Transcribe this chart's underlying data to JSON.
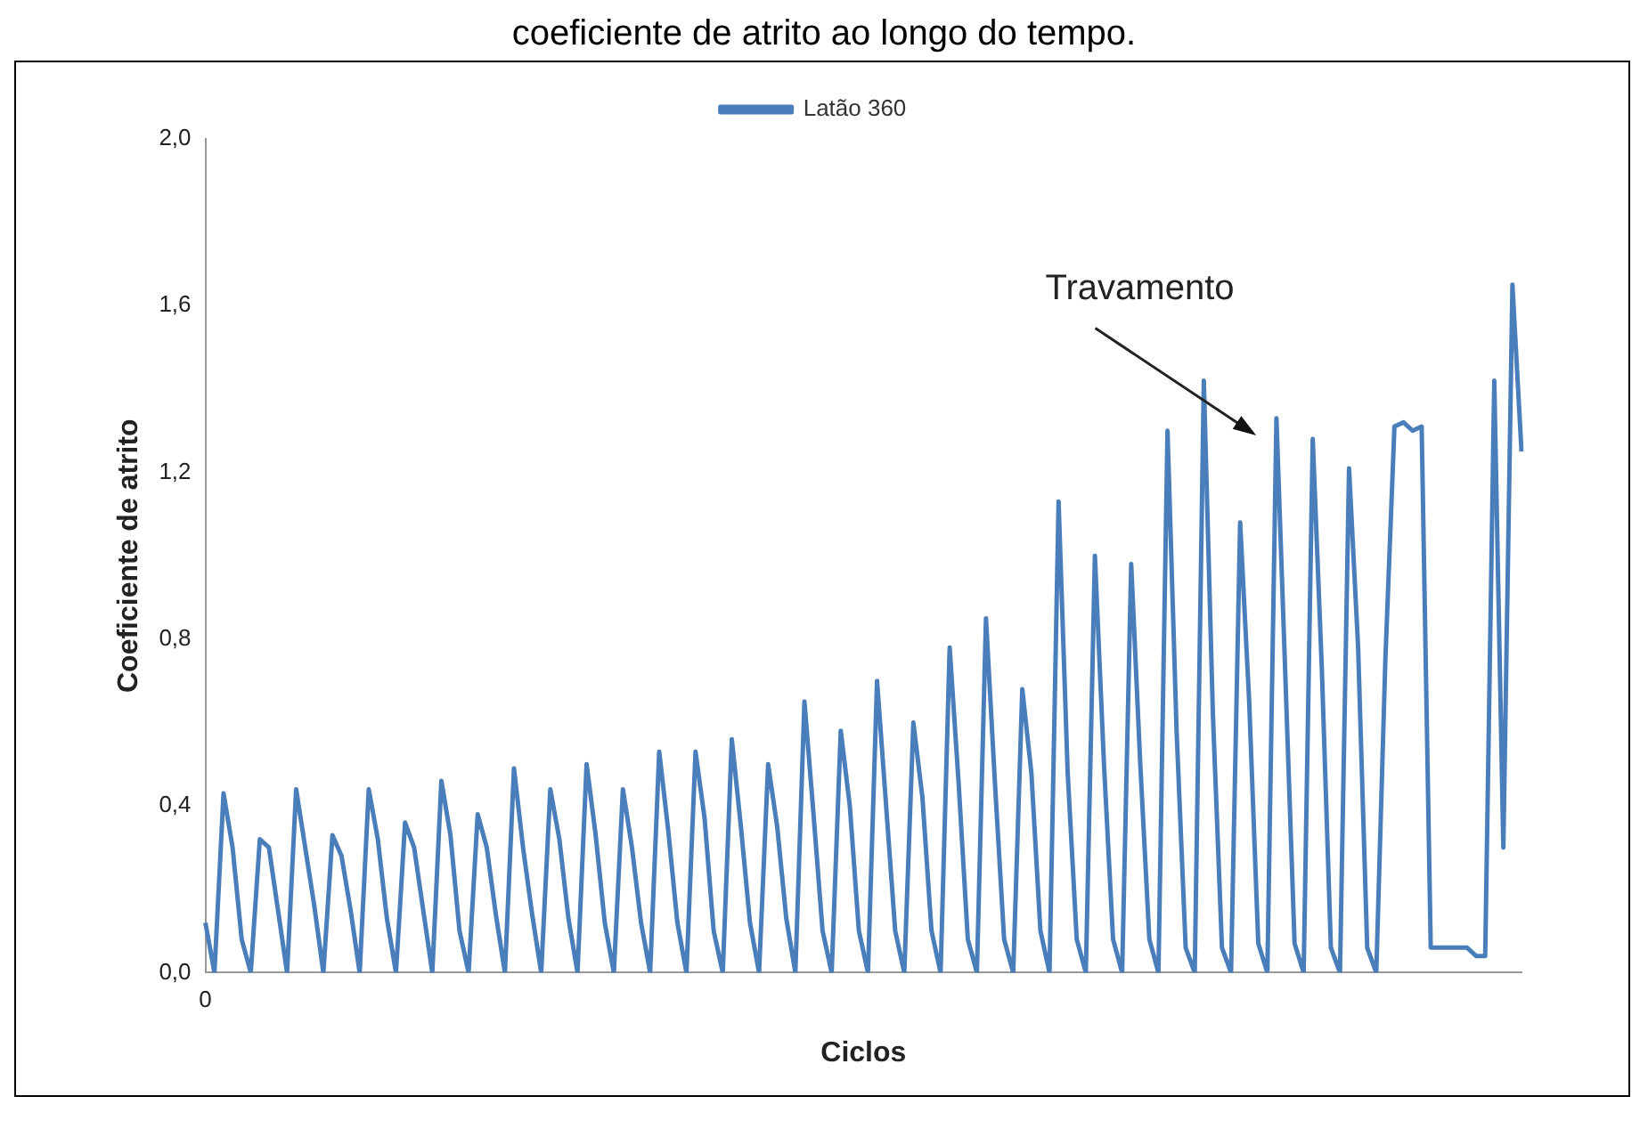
{
  "chart_data": {
    "type": "line",
    "title": "coeficiente de atrito ao longo do tempo.",
    "xlabel": "Ciclos",
    "ylabel": "Coeficiente de atrito",
    "annotations": [
      "Travamento"
    ],
    "categories": [
      "0",
      null,
      null,
      null,
      null,
      null,
      null,
      null,
      null,
      null,
      null,
      null,
      null,
      null,
      null,
      null,
      null,
      null,
      null,
      null,
      null,
      null,
      null,
      null,
      null,
      null,
      null,
      null,
      null,
      null,
      null,
      null,
      null,
      null,
      null,
      null,
      null,
      null,
      null,
      null,
      null,
      null,
      null,
      null,
      null,
      null,
      null,
      null,
      null,
      null,
      null,
      null,
      null,
      null,
      null,
      null,
      null,
      null,
      null,
      null,
      null,
      null,
      null,
      null,
      null,
      null,
      null,
      null,
      null,
      null,
      null,
      null,
      null,
      null,
      null,
      null,
      null,
      null,
      null,
      null,
      null,
      null,
      null,
      null,
      null,
      null,
      null,
      null,
      null,
      null,
      null,
      null,
      null,
      null,
      null,
      null,
      null,
      null,
      null,
      null,
      null,
      null,
      null,
      null,
      null,
      null,
      null,
      null,
      null,
      null,
      null,
      null,
      null,
      null,
      null,
      null,
      null,
      null,
      null,
      null,
      null,
      null,
      null,
      null,
      null,
      null,
      null,
      null,
      null,
      null,
      null,
      null,
      null,
      null,
      null,
      null,
      null,
      null,
      null,
      null,
      null,
      null,
      null,
      null,
      null,
      null
    ],
    "series": [
      {
        "name": "Latão 360",
        "color": "#4a7ebb",
        "values": [
          0.12,
          0,
          0.43,
          0.3,
          0.08,
          0,
          0.32,
          0.3,
          0.15,
          0,
          0.44,
          0.3,
          0.16,
          0,
          0.33,
          0.28,
          0.15,
          0,
          0.44,
          0.32,
          0.13,
          0,
          0.36,
          0.3,
          0.15,
          0,
          0.46,
          0.33,
          0.1,
          0,
          0.38,
          0.3,
          0.14,
          0,
          0.49,
          0.3,
          0.14,
          0,
          0.44,
          0.32,
          0.13,
          0,
          0.5,
          0.33,
          0.12,
          0,
          0.44,
          0.3,
          0.12,
          0,
          0.53,
          0.34,
          0.12,
          0,
          0.53,
          0.37,
          0.1,
          0,
          0.56,
          0.35,
          0.12,
          0,
          0.5,
          0.35,
          0.13,
          0,
          0.65,
          0.38,
          0.1,
          0,
          0.58,
          0.4,
          0.1,
          0,
          0.7,
          0.4,
          0.1,
          0,
          0.6,
          0.42,
          0.1,
          0,
          0.78,
          0.45,
          0.08,
          0,
          0.85,
          0.45,
          0.08,
          0,
          0.68,
          0.48,
          0.1,
          0,
          1.13,
          0.48,
          0.08,
          0,
          1.0,
          0.5,
          0.08,
          0,
          0.98,
          0.5,
          0.08,
          0,
          1.3,
          0.58,
          0.06,
          0,
          1.42,
          0.62,
          0.06,
          0,
          1.08,
          0.65,
          0.07,
          0,
          1.33,
          0.7,
          0.07,
          0,
          1.28,
          0.73,
          0.06,
          0,
          1.21,
          0.78,
          0.06,
          0,
          0.75,
          1.31,
          1.32,
          1.3,
          1.31,
          0.06,
          0.06,
          0.06,
          0.06,
          0.06,
          0.04,
          0.04,
          1.42,
          0.3,
          1.65,
          1.25
        ]
      }
    ],
    "ylim": [
      0,
      2
    ],
    "yticks": [
      {
        "value": 0,
        "label": "0,0"
      },
      {
        "value": 0.4,
        "label": "0,4"
      },
      {
        "value": 0.8,
        "label": "0,8"
      },
      {
        "value": 1.2,
        "label": "1,2"
      },
      {
        "value": 1.6,
        "label": "1,6"
      },
      {
        "value": 2,
        "label": "2,0"
      }
    ],
    "grid": false,
    "legend": "top",
    "marker": "none",
    "line_style": "solid"
  }
}
